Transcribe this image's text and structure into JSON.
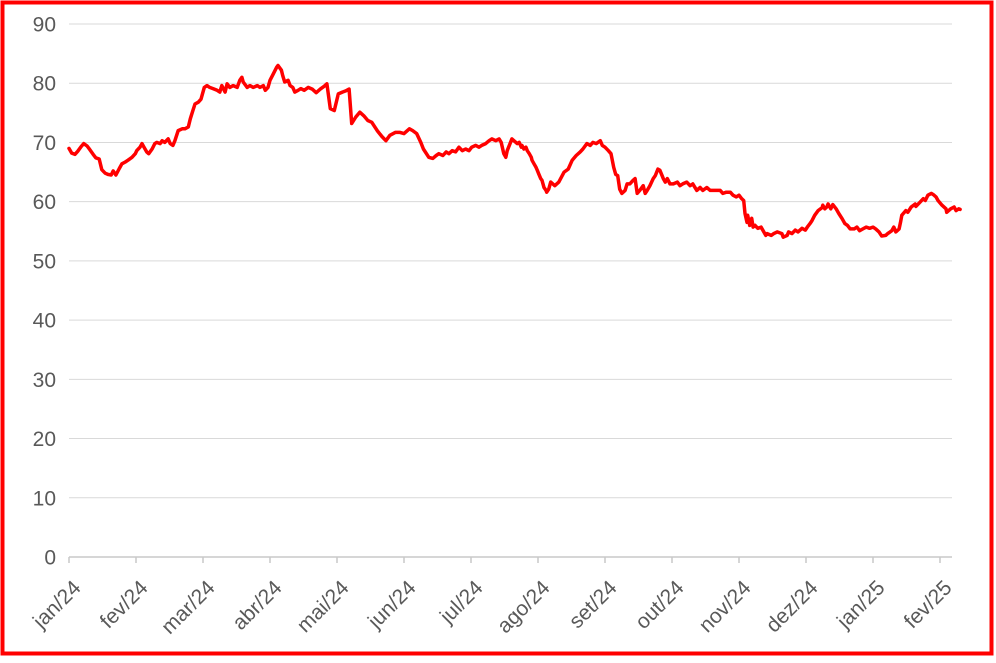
{
  "frame": {
    "border_color": "#FF0000",
    "background": "#FFFFFF"
  },
  "axis_style": {
    "gridline_color": "#D9D9D9",
    "axis_line_color": "#C9C9C9",
    "tick_label_color": "#595959"
  },
  "chart_data": {
    "type": "line",
    "title": "",
    "xlabel": "",
    "ylabel": "",
    "legend": false,
    "grid": "horizontal",
    "x_axis": {
      "categories": [
        "jan/24",
        "fev/24",
        "mar/24",
        "abr/24",
        "mai/24",
        "jun/24",
        "jul/24",
        "ago/24",
        "set/24",
        "out/24",
        "nov/24",
        "dez/24",
        "jan/25",
        "fev/25"
      ],
      "label_rotation_deg": 45
    },
    "y_axis": {
      "min": 0,
      "max": 90,
      "tick_interval": 10,
      "ticks": [
        0,
        10,
        20,
        30,
        40,
        50,
        60,
        70,
        80,
        90
      ]
    },
    "series": [
      {
        "color": "#FF0000",
        "line_width": 3.5,
        "points": [
          [
            0.0,
            69.0
          ],
          [
            0.04,
            68.2
          ],
          [
            0.09,
            68.0
          ],
          [
            0.13,
            68.5
          ],
          [
            0.18,
            69.3
          ],
          [
            0.22,
            69.8
          ],
          [
            0.27,
            69.4
          ],
          [
            0.31,
            68.8
          ],
          [
            0.36,
            68.0
          ],
          [
            0.4,
            67.4
          ],
          [
            0.45,
            67.2
          ],
          [
            0.49,
            65.4
          ],
          [
            0.54,
            64.8
          ],
          [
            0.58,
            64.6
          ],
          [
            0.63,
            64.5
          ],
          [
            0.66,
            65.2
          ],
          [
            0.7,
            64.5
          ],
          [
            0.75,
            65.6
          ],
          [
            0.79,
            66.4
          ],
          [
            0.84,
            66.7
          ],
          [
            0.88,
            67.0
          ],
          [
            0.94,
            67.5
          ],
          [
            0.99,
            68.1
          ],
          [
            1.01,
            68.6
          ],
          [
            1.06,
            69.2
          ],
          [
            1.09,
            69.8
          ],
          [
            1.12,
            69.2
          ],
          [
            1.16,
            68.4
          ],
          [
            1.19,
            68.1
          ],
          [
            1.24,
            68.9
          ],
          [
            1.28,
            69.8
          ],
          [
            1.31,
            70.0
          ],
          [
            1.36,
            69.8
          ],
          [
            1.39,
            70.3
          ],
          [
            1.43,
            70.0
          ],
          [
            1.48,
            70.6
          ],
          [
            1.51,
            69.8
          ],
          [
            1.55,
            69.5
          ],
          [
            1.58,
            70.3
          ],
          [
            1.63,
            72.0
          ],
          [
            1.69,
            72.3
          ],
          [
            1.73,
            72.3
          ],
          [
            1.78,
            72.6
          ],
          [
            1.81,
            74.0
          ],
          [
            1.85,
            75.4
          ],
          [
            1.88,
            76.5
          ],
          [
            1.93,
            76.8
          ],
          [
            1.97,
            77.3
          ],
          [
            2.02,
            79.3
          ],
          [
            2.06,
            79.6
          ],
          [
            2.1,
            79.3
          ],
          [
            2.15,
            79.1
          ],
          [
            2.21,
            78.8
          ],
          [
            2.25,
            78.5
          ],
          [
            2.28,
            79.6
          ],
          [
            2.33,
            78.5
          ],
          [
            2.36,
            79.9
          ],
          [
            2.4,
            79.3
          ],
          [
            2.45,
            79.6
          ],
          [
            2.51,
            79.3
          ],
          [
            2.55,
            80.5
          ],
          [
            2.58,
            81.0
          ],
          [
            2.6,
            80.2
          ],
          [
            2.66,
            79.3
          ],
          [
            2.7,
            79.6
          ],
          [
            2.75,
            79.3
          ],
          [
            2.81,
            79.6
          ],
          [
            2.85,
            79.3
          ],
          [
            2.9,
            79.6
          ],
          [
            2.93,
            78.8
          ],
          [
            2.97,
            79.3
          ],
          [
            3.0,
            80.5
          ],
          [
            3.05,
            81.6
          ],
          [
            3.1,
            82.7
          ],
          [
            3.12,
            83.0
          ],
          [
            3.17,
            82.2
          ],
          [
            3.19,
            81.3
          ],
          [
            3.22,
            80.2
          ],
          [
            3.27,
            80.5
          ],
          [
            3.3,
            79.6
          ],
          [
            3.34,
            79.3
          ],
          [
            3.37,
            78.5
          ],
          [
            3.42,
            78.8
          ],
          [
            3.46,
            79.1
          ],
          [
            3.51,
            78.8
          ],
          [
            3.57,
            79.3
          ],
          [
            3.63,
            79.0
          ],
          [
            3.69,
            78.4
          ],
          [
            3.75,
            79.0
          ],
          [
            3.81,
            79.5
          ],
          [
            3.85,
            79.9
          ],
          [
            3.9,
            75.7
          ],
          [
            3.96,
            75.4
          ],
          [
            4.02,
            78.2
          ],
          [
            4.08,
            78.5
          ],
          [
            4.13,
            78.7
          ],
          [
            4.18,
            79.0
          ],
          [
            4.22,
            73.2
          ],
          [
            4.28,
            74.3
          ],
          [
            4.34,
            75.1
          ],
          [
            4.4,
            74.5
          ],
          [
            4.46,
            73.7
          ],
          [
            4.52,
            73.4
          ],
          [
            4.6,
            72.0
          ],
          [
            4.67,
            71.0
          ],
          [
            4.73,
            70.3
          ],
          [
            4.79,
            71.2
          ],
          [
            4.87,
            71.7
          ],
          [
            4.94,
            71.7
          ],
          [
            5.0,
            71.5
          ],
          [
            5.08,
            72.3
          ],
          [
            5.13,
            72.0
          ],
          [
            5.19,
            71.5
          ],
          [
            5.25,
            70.0
          ],
          [
            5.29,
            68.9
          ],
          [
            5.37,
            67.5
          ],
          [
            5.43,
            67.3
          ],
          [
            5.48,
            67.8
          ],
          [
            5.52,
            68.1
          ],
          [
            5.58,
            67.8
          ],
          [
            5.63,
            68.4
          ],
          [
            5.67,
            68.1
          ],
          [
            5.72,
            68.6
          ],
          [
            5.77,
            68.4
          ],
          [
            5.82,
            69.2
          ],
          [
            5.87,
            68.6
          ],
          [
            5.92,
            68.9
          ],
          [
            5.97,
            68.6
          ],
          [
            6.01,
            69.2
          ],
          [
            6.07,
            69.5
          ],
          [
            6.12,
            69.2
          ],
          [
            6.16,
            69.5
          ],
          [
            6.22,
            69.8
          ],
          [
            6.27,
            70.3
          ],
          [
            6.31,
            70.6
          ],
          [
            6.37,
            70.3
          ],
          [
            6.42,
            70.6
          ],
          [
            6.45,
            70.0
          ],
          [
            6.49,
            68.1
          ],
          [
            6.52,
            67.5
          ],
          [
            6.54,
            68.6
          ],
          [
            6.6,
            70.3
          ],
          [
            6.61,
            70.6
          ],
          [
            6.64,
            70.3
          ],
          [
            6.69,
            69.8
          ],
          [
            6.72,
            70.0
          ],
          [
            6.75,
            69.2
          ],
          [
            6.76,
            69.5
          ],
          [
            6.79,
            68.9
          ],
          [
            6.82,
            69.2
          ],
          [
            6.84,
            68.6
          ],
          [
            6.87,
            68.1
          ],
          [
            6.9,
            67.5
          ],
          [
            6.91,
            67.0
          ],
          [
            6.94,
            66.4
          ],
          [
            6.97,
            65.8
          ],
          [
            6.99,
            65.3
          ],
          [
            7.01,
            64.7
          ],
          [
            7.04,
            63.9
          ],
          [
            7.06,
            63.6
          ],
          [
            7.09,
            62.4
          ],
          [
            7.12,
            61.9
          ],
          [
            7.13,
            61.6
          ],
          [
            7.16,
            62.1
          ],
          [
            7.19,
            63.3
          ],
          [
            7.25,
            62.7
          ],
          [
            7.31,
            63.3
          ],
          [
            7.39,
            65.0
          ],
          [
            7.45,
            65.5
          ],
          [
            7.51,
            67.0
          ],
          [
            7.57,
            67.8
          ],
          [
            7.63,
            68.4
          ],
          [
            7.67,
            68.9
          ],
          [
            7.73,
            69.8
          ],
          [
            7.78,
            69.5
          ],
          [
            7.82,
            70.0
          ],
          [
            7.87,
            69.8
          ],
          [
            7.93,
            70.3
          ],
          [
            7.96,
            69.5
          ],
          [
            8.0,
            69.2
          ],
          [
            8.05,
            68.6
          ],
          [
            8.09,
            68.1
          ],
          [
            8.13,
            65.8
          ],
          [
            8.16,
            64.6
          ],
          [
            8.19,
            64.4
          ],
          [
            8.22,
            62.1
          ],
          [
            8.25,
            61.4
          ],
          [
            8.3,
            61.9
          ],
          [
            8.33,
            63.0
          ],
          [
            8.37,
            63.0
          ],
          [
            8.42,
            63.6
          ],
          [
            8.45,
            63.9
          ],
          [
            8.48,
            61.4
          ],
          [
            8.52,
            61.9
          ],
          [
            8.57,
            62.7
          ],
          [
            8.6,
            61.4
          ],
          [
            8.63,
            61.9
          ],
          [
            8.67,
            62.7
          ],
          [
            8.72,
            63.9
          ],
          [
            8.75,
            64.4
          ],
          [
            8.79,
            65.5
          ],
          [
            8.82,
            65.3
          ],
          [
            8.87,
            63.9
          ],
          [
            8.9,
            63.3
          ],
          [
            8.93,
            63.9
          ],
          [
            8.97,
            63.0
          ],
          [
            9.02,
            63.0
          ],
          [
            9.08,
            63.3
          ],
          [
            9.12,
            62.7
          ],
          [
            9.16,
            63.0
          ],
          [
            9.22,
            63.3
          ],
          [
            9.27,
            62.7
          ],
          [
            9.31,
            63.0
          ],
          [
            9.37,
            61.9
          ],
          [
            9.42,
            62.4
          ],
          [
            9.46,
            61.9
          ],
          [
            9.52,
            62.4
          ],
          [
            9.57,
            61.9
          ],
          [
            9.61,
            61.9
          ],
          [
            9.67,
            61.9
          ],
          [
            9.72,
            61.9
          ],
          [
            9.76,
            61.4
          ],
          [
            9.81,
            61.6
          ],
          [
            9.87,
            61.6
          ],
          [
            9.91,
            61.1
          ],
          [
            9.96,
            60.8
          ],
          [
            10.0,
            61.1
          ],
          [
            10.04,
            60.5
          ],
          [
            10.07,
            60.2
          ],
          [
            10.09,
            58.0
          ],
          [
            10.12,
            56.5
          ],
          [
            10.13,
            57.7
          ],
          [
            10.16,
            56.0
          ],
          [
            10.19,
            57.2
          ],
          [
            10.21,
            55.7
          ],
          [
            10.24,
            56.0
          ],
          [
            10.28,
            55.5
          ],
          [
            10.33,
            55.7
          ],
          [
            10.37,
            54.9
          ],
          [
            10.4,
            54.3
          ],
          [
            10.42,
            54.6
          ],
          [
            10.48,
            54.3
          ],
          [
            10.52,
            54.6
          ],
          [
            10.57,
            54.9
          ],
          [
            10.64,
            54.6
          ],
          [
            10.66,
            54.0
          ],
          [
            10.72,
            54.3
          ],
          [
            10.74,
            54.9
          ],
          [
            10.79,
            54.6
          ],
          [
            10.84,
            55.2
          ],
          [
            10.88,
            54.9
          ],
          [
            10.94,
            55.5
          ],
          [
            10.99,
            55.2
          ],
          [
            11.02,
            55.7
          ],
          [
            11.06,
            56.3
          ],
          [
            11.09,
            56.8
          ],
          [
            11.13,
            57.7
          ],
          [
            11.18,
            58.5
          ],
          [
            11.24,
            59.0
          ],
          [
            11.25,
            59.4
          ],
          [
            11.28,
            58.8
          ],
          [
            11.31,
            59.1
          ],
          [
            11.33,
            59.6
          ],
          [
            11.37,
            58.8
          ],
          [
            11.4,
            59.5
          ],
          [
            11.45,
            58.8
          ],
          [
            11.49,
            58.0
          ],
          [
            11.54,
            57.1
          ],
          [
            11.58,
            56.3
          ],
          [
            11.62,
            56.0
          ],
          [
            11.66,
            55.4
          ],
          [
            11.72,
            55.4
          ],
          [
            11.76,
            55.7
          ],
          [
            11.8,
            55.1
          ],
          [
            11.85,
            55.4
          ],
          [
            11.9,
            55.7
          ],
          [
            11.95,
            55.5
          ],
          [
            12.0,
            55.7
          ],
          [
            12.04,
            55.4
          ],
          [
            12.09,
            54.9
          ],
          [
            12.13,
            54.2
          ],
          [
            12.19,
            54.3
          ],
          [
            12.22,
            54.6
          ],
          [
            12.28,
            55.1
          ],
          [
            12.31,
            55.7
          ],
          [
            12.34,
            54.9
          ],
          [
            12.39,
            55.4
          ],
          [
            12.41,
            56.5
          ],
          [
            12.43,
            57.7
          ],
          [
            12.49,
            58.5
          ],
          [
            12.52,
            58.2
          ],
          [
            12.57,
            59.1
          ],
          [
            12.63,
            59.6
          ],
          [
            12.64,
            59.2
          ],
          [
            12.7,
            59.9
          ],
          [
            12.75,
            60.5
          ],
          [
            12.78,
            60.2
          ],
          [
            12.82,
            61.1
          ],
          [
            12.87,
            61.4
          ],
          [
            12.9,
            61.2
          ],
          [
            12.94,
            60.8
          ],
          [
            12.97,
            60.2
          ],
          [
            13.03,
            59.4
          ],
          [
            13.09,
            58.8
          ],
          [
            13.1,
            58.2
          ],
          [
            13.16,
            58.8
          ],
          [
            13.21,
            59.1
          ],
          [
            13.24,
            58.5
          ],
          [
            13.28,
            58.8
          ],
          [
            13.3,
            58.7
          ]
        ]
      }
    ]
  }
}
